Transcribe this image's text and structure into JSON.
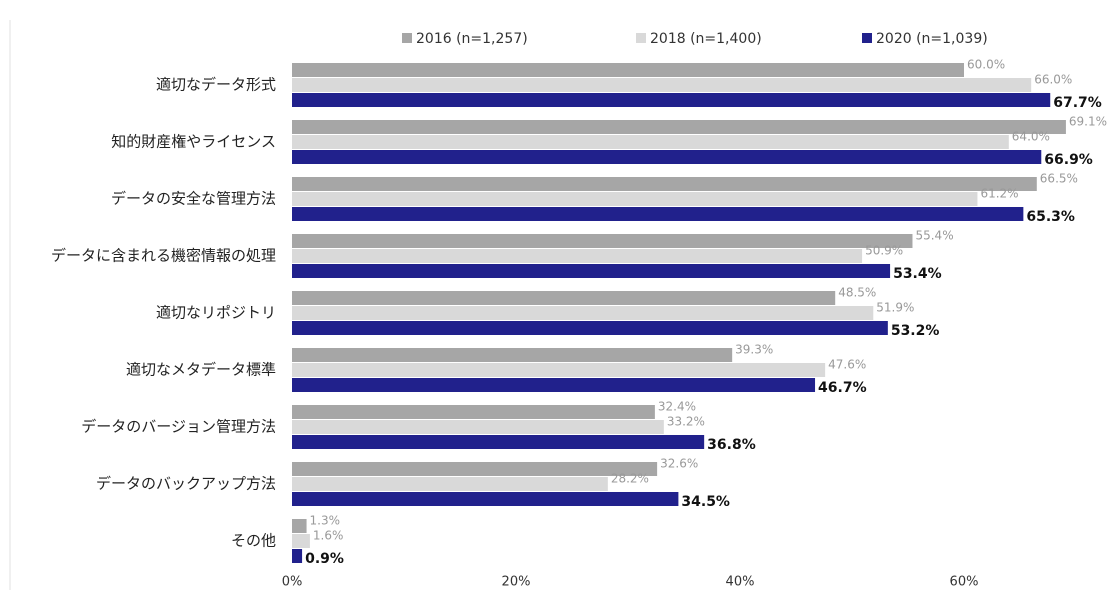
{
  "chart_data": {
    "type": "barh",
    "categories": [
      "適切なデータ形式",
      "知的財産権やライセンス",
      "データの安全な管理方法",
      "データに含まれる機密情報の処理",
      "適切なリポジトリ",
      "適切なメタデータ標準",
      "データのバージョン管理方法",
      "データのバックアップ方法",
      "その他"
    ],
    "series": [
      {
        "name": "2016 (n=1,257)",
        "color": "#a6a6a6",
        "values": [
          60.0,
          69.1,
          66.5,
          55.4,
          48.5,
          39.3,
          32.4,
          32.6,
          1.3
        ],
        "value_labels": [
          "60.0%",
          "69.1%",
          "66.5%",
          "55.4%",
          "48.5%",
          "39.3%",
          "32.4%",
          "32.6%",
          "1.3%"
        ]
      },
      {
        "name": "2018 (n=1,400)",
        "color": "#d9d9d9",
        "values": [
          66.0,
          64.0,
          61.2,
          50.9,
          51.9,
          47.6,
          33.2,
          28.2,
          1.6
        ],
        "value_labels": [
          "66.0%",
          "64.0%",
          "61.2%",
          "50.9%",
          "51.9%",
          "47.6%",
          "33.2%",
          "28.2%",
          "1.6%"
        ]
      },
      {
        "name": "2020 (n=1,039)",
        "color": "#21218c",
        "values": [
          67.7,
          66.9,
          65.3,
          53.4,
          53.2,
          46.7,
          36.8,
          34.5,
          0.9
        ],
        "value_labels": [
          "67.7%",
          "66.9%",
          "65.3%",
          "53.4%",
          "53.2%",
          "46.7%",
          "36.8%",
          "34.5%",
          "0.9%"
        ]
      }
    ],
    "xlim": [
      0,
      70
    ],
    "xticks": [
      {
        "value": 0,
        "label": "0%"
      },
      {
        "value": 20,
        "label": "20%"
      },
      {
        "value": 40,
        "label": "40%"
      },
      {
        "value": 60,
        "label": "60%"
      }
    ],
    "legend": "top"
  }
}
